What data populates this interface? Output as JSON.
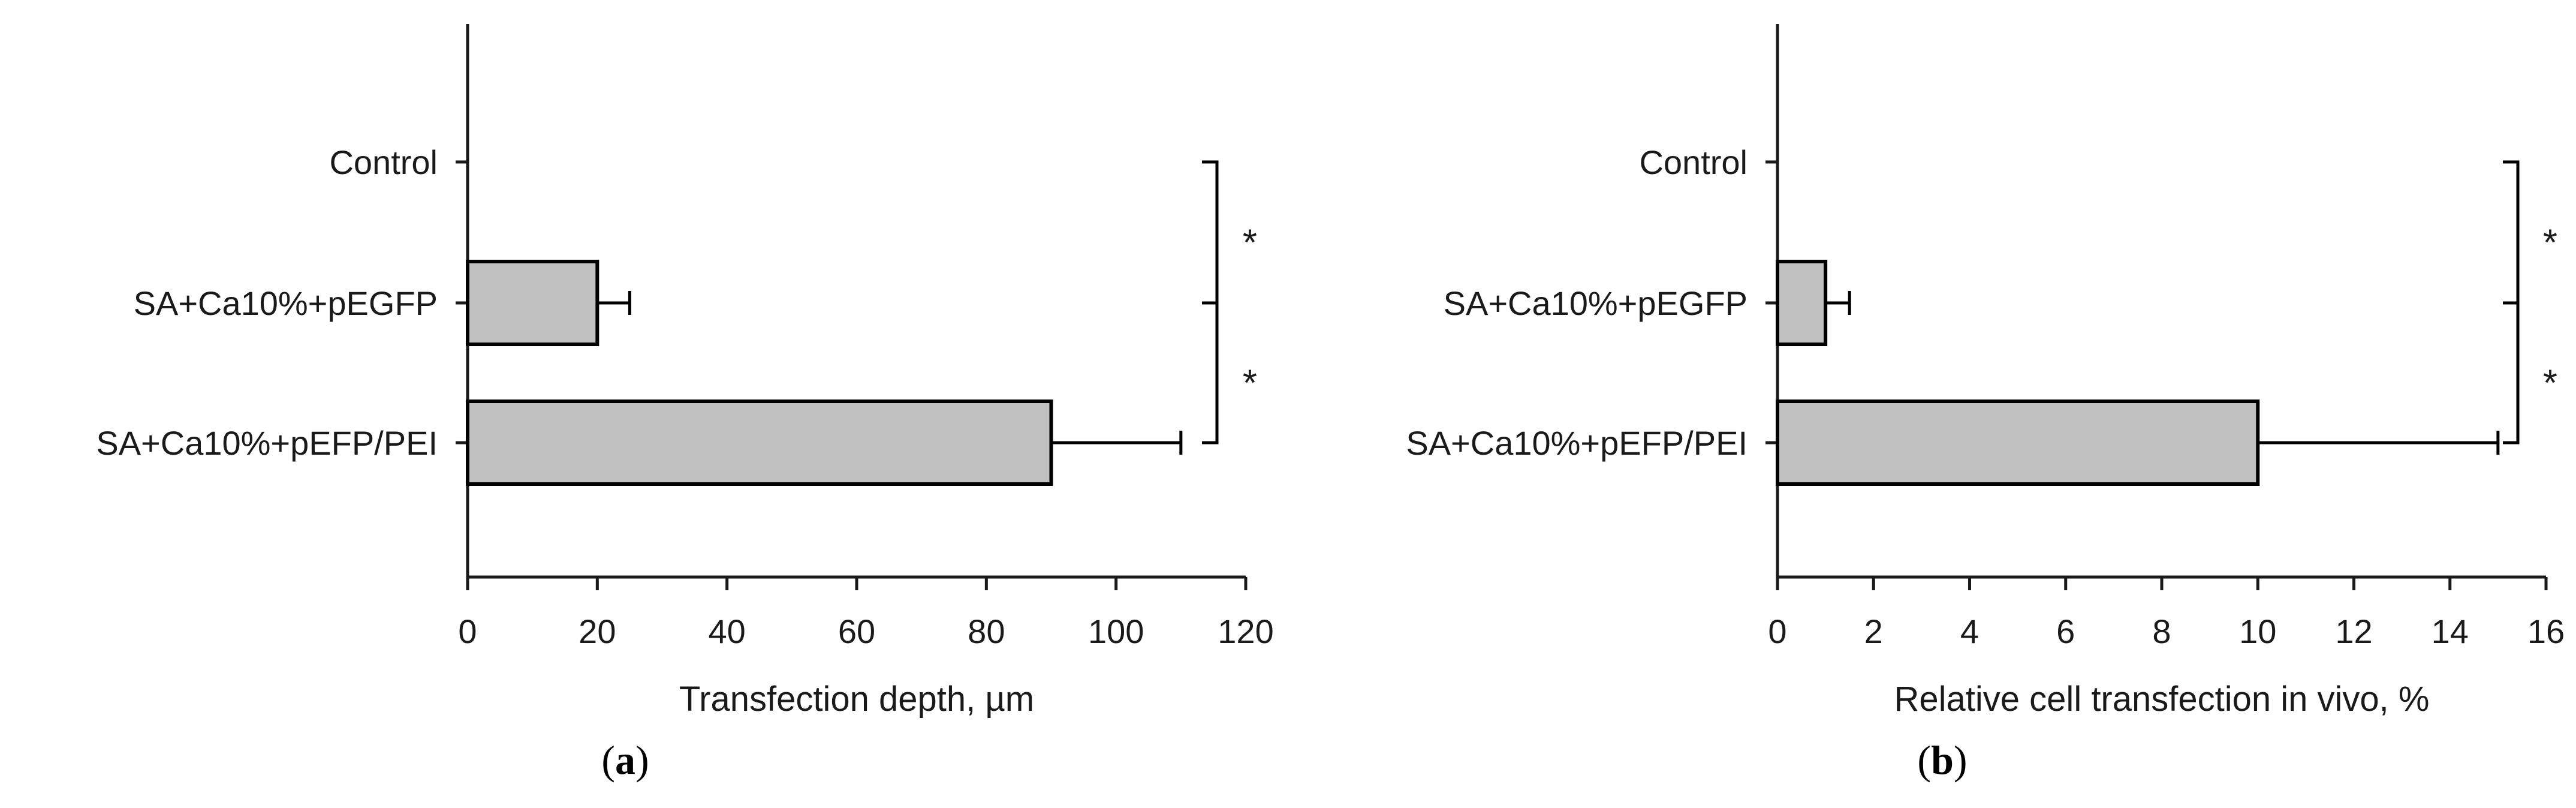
{
  "chart_data": [
    {
      "type": "bar",
      "orientation": "horizontal",
      "panel_label": "(a)",
      "panel_letter": "a",
      "categories": [
        "Control",
        "SA+Ca10%+pEGFP",
        "SA+Ca10%+pEFP/PEI"
      ],
      "values": [
        0,
        20,
        90
      ],
      "error_plus": [
        0,
        5,
        20
      ],
      "xlabel": "Transfection depth,  µm",
      "xlim": [
        0,
        120
      ],
      "xticks": [
        0,
        20,
        40,
        60,
        80,
        100,
        120
      ],
      "significance": [
        "*",
        "*"
      ],
      "bar_color": "#c0c0c0",
      "grid": false,
      "legend": "none"
    },
    {
      "type": "bar",
      "orientation": "horizontal",
      "panel_label": "(b)",
      "panel_letter": "b",
      "categories": [
        "Control",
        "SA+Ca10%+pEGFP",
        "SA+Ca10%+pEFP/PEI"
      ],
      "values": [
        0,
        1,
        10
      ],
      "error_plus": [
        0,
        0.5,
        5
      ],
      "xlabel": "Relative cell transfection in vivo, %",
      "xlim": [
        0,
        16
      ],
      "xticks": [
        0,
        2,
        4,
        6,
        8,
        10,
        12,
        14,
        16
      ],
      "significance": [
        "*",
        "*"
      ],
      "bar_color": "#c0c0c0",
      "grid": false,
      "legend": "none"
    }
  ]
}
